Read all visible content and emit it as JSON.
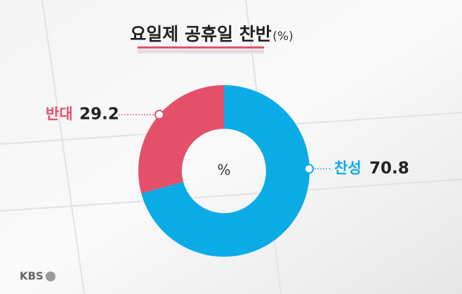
{
  "chart_data": {
    "type": "pie",
    "donut": true,
    "title": "요일제 공휴일 찬반",
    "subtitle": "(%)",
    "center_label": "%",
    "categories": [
      "찬성",
      "반대"
    ],
    "values": [
      70.8,
      29.2
    ],
    "colors": [
      "#0bace6",
      "#e4506a"
    ],
    "source": "KBS"
  }
}
